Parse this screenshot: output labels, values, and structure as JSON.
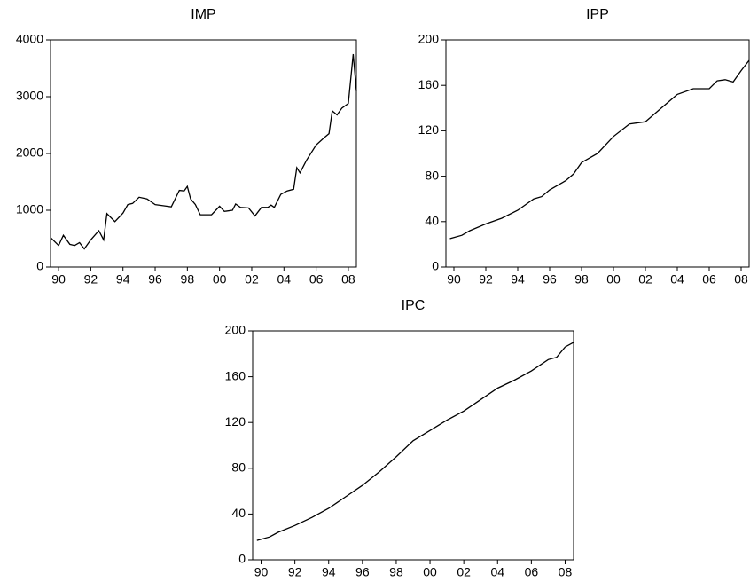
{
  "chart_data": [
    {
      "type": "line",
      "title": "IMP",
      "color": "#000000",
      "x": [
        1989.5,
        1990,
        1990.3,
        1990.7,
        1991,
        1991.3,
        1991.6,
        1992,
        1992.5,
        1992.8,
        1993,
        1993.5,
        1994,
        1994.3,
        1994.6,
        1995,
        1995.5,
        1996,
        1996.5,
        1997,
        1997.5,
        1997.8,
        1998,
        1998.2,
        1998.5,
        1998.8,
        1999.5,
        2000,
        2000.3,
        2000.8,
        2001,
        2001.3,
        2001.8,
        2002.2,
        2002.6,
        2003,
        2003.2,
        2003.4,
        2003.8,
        2004.2,
        2004.6,
        2004.8,
        2005,
        2005.4,
        2006,
        2006.5,
        2006.8,
        2007,
        2007.3,
        2007.6,
        2008,
        2008.3,
        2008.5
      ],
      "values": [
        520,
        380,
        560,
        400,
        380,
        430,
        320,
        480,
        640,
        480,
        940,
        800,
        950,
        1100,
        1120,
        1230,
        1200,
        1100,
        1080,
        1060,
        1350,
        1340,
        1420,
        1200,
        1100,
        920,
        920,
        1070,
        980,
        1000,
        1110,
        1050,
        1040,
        900,
        1050,
        1050,
        1090,
        1050,
        1280,
        1340,
        1370,
        1750,
        1660,
        1880,
        2150,
        2280,
        2350,
        2750,
        2680,
        2800,
        2880,
        3750,
        3100
      ],
      "xlim": [
        1989.5,
        2008.5
      ],
      "ylim": [
        0,
        4000
      ],
      "xticks": [
        {
          "value": 1990,
          "label": "90"
        },
        {
          "value": 1992,
          "label": "92"
        },
        {
          "value": 1994,
          "label": "94"
        },
        {
          "value": 1996,
          "label": "96"
        },
        {
          "value": 1998,
          "label": "98"
        },
        {
          "value": 2000,
          "label": "00"
        },
        {
          "value": 2002,
          "label": "02"
        },
        {
          "value": 2004,
          "label": "04"
        },
        {
          "value": 2006,
          "label": "06"
        },
        {
          "value": 2008,
          "label": "08"
        }
      ],
      "yticks": [
        0,
        1000,
        2000,
        3000,
        4000
      ]
    },
    {
      "type": "line",
      "title": "IPP",
      "color": "#000000",
      "x": [
        1989.75,
        1990.5,
        1991,
        1992,
        1993,
        1994,
        1995,
        1995.5,
        1996,
        1997,
        1997.5,
        1998,
        1999,
        2000,
        2001,
        2002,
        2003,
        2004,
        2005,
        2006,
        2006.5,
        2007,
        2007.5,
        2008,
        2008.5
      ],
      "values": [
        25,
        28,
        32,
        38,
        43,
        50,
        60,
        62,
        68,
        76,
        82,
        92,
        100,
        115,
        126,
        128,
        140,
        152,
        157,
        157,
        164,
        165,
        163,
        173,
        182
      ],
      "xlim": [
        1989.5,
        2008.5
      ],
      "ylim": [
        0,
        200
      ],
      "xticks": [
        {
          "value": 1990,
          "label": "90"
        },
        {
          "value": 1992,
          "label": "92"
        },
        {
          "value": 1994,
          "label": "94"
        },
        {
          "value": 1996,
          "label": "96"
        },
        {
          "value": 1998,
          "label": "98"
        },
        {
          "value": 2000,
          "label": "00"
        },
        {
          "value": 2002,
          "label": "02"
        },
        {
          "value": 2004,
          "label": "04"
        },
        {
          "value": 2006,
          "label": "06"
        },
        {
          "value": 2008,
          "label": "08"
        }
      ],
      "yticks": [
        0,
        40,
        80,
        120,
        160,
        200
      ]
    },
    {
      "type": "line",
      "title": "IPC",
      "color": "#000000",
      "x": [
        1989.75,
        1990.5,
        1991,
        1992,
        1993,
        1994,
        1995,
        1996,
        1997,
        1998,
        1999,
        2000,
        2001,
        2002,
        2003,
        2004,
        2005,
        2006,
        2007,
        2007.5,
        2008,
        2008.5
      ],
      "values": [
        17,
        20,
        24,
        30,
        37,
        45,
        55,
        65,
        77,
        90,
        104,
        113,
        122,
        130,
        140,
        150,
        157,
        165,
        175,
        177,
        186,
        190
      ],
      "xlim": [
        1989.5,
        2008.5
      ],
      "ylim": [
        0,
        200
      ],
      "xticks": [
        {
          "value": 1990,
          "label": "90"
        },
        {
          "value": 1992,
          "label": "92"
        },
        {
          "value": 1994,
          "label": "94"
        },
        {
          "value": 1996,
          "label": "96"
        },
        {
          "value": 1998,
          "label": "98"
        },
        {
          "value": 2000,
          "label": "00"
        },
        {
          "value": 2002,
          "label": "02"
        },
        {
          "value": 2004,
          "label": "04"
        },
        {
          "value": 2006,
          "label": "06"
        },
        {
          "value": 2008,
          "label": "08"
        }
      ],
      "yticks": [
        0,
        40,
        80,
        120,
        160,
        200
      ]
    }
  ]
}
